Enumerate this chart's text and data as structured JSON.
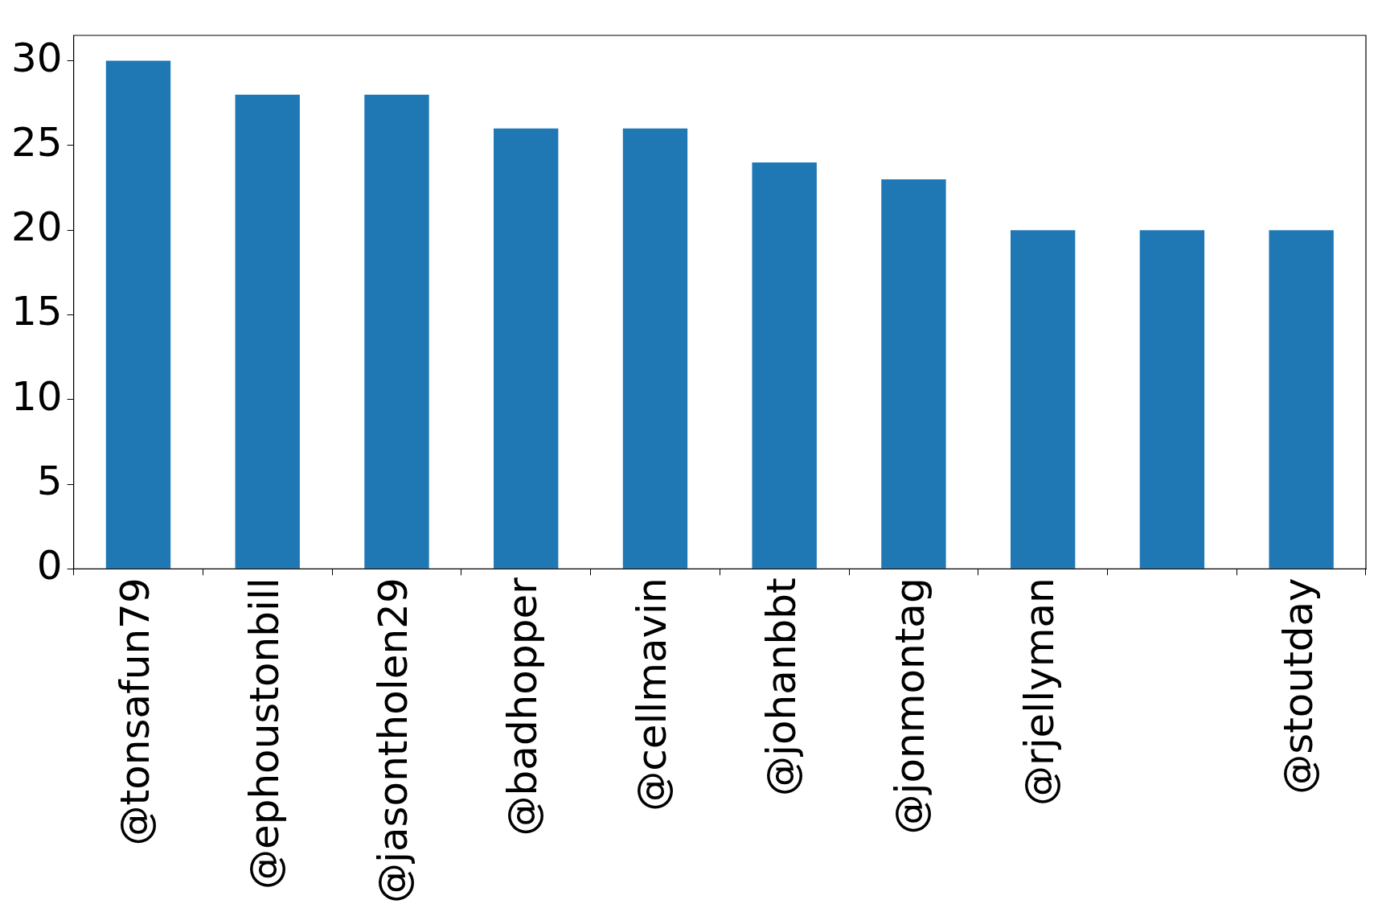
{
  "chart_data": {
    "type": "bar",
    "categories": [
      "@tonsafun79",
      "@ephoustonbill",
      "@jasontholen29",
      "@badhopper",
      "@cellmavin",
      "@johanbbt",
      "@jonmontag",
      "@rjellyman",
      null,
      "@stoutday"
    ],
    "values": [
      30,
      28,
      28,
      26,
      26,
      24,
      23,
      20,
      20,
      20
    ],
    "color": "#1f77b4",
    "ylim": [
      0,
      31.5
    ],
    "yticks": [
      0,
      5,
      10,
      15,
      20,
      25,
      30
    ],
    "grid": false,
    "legend": false
  }
}
